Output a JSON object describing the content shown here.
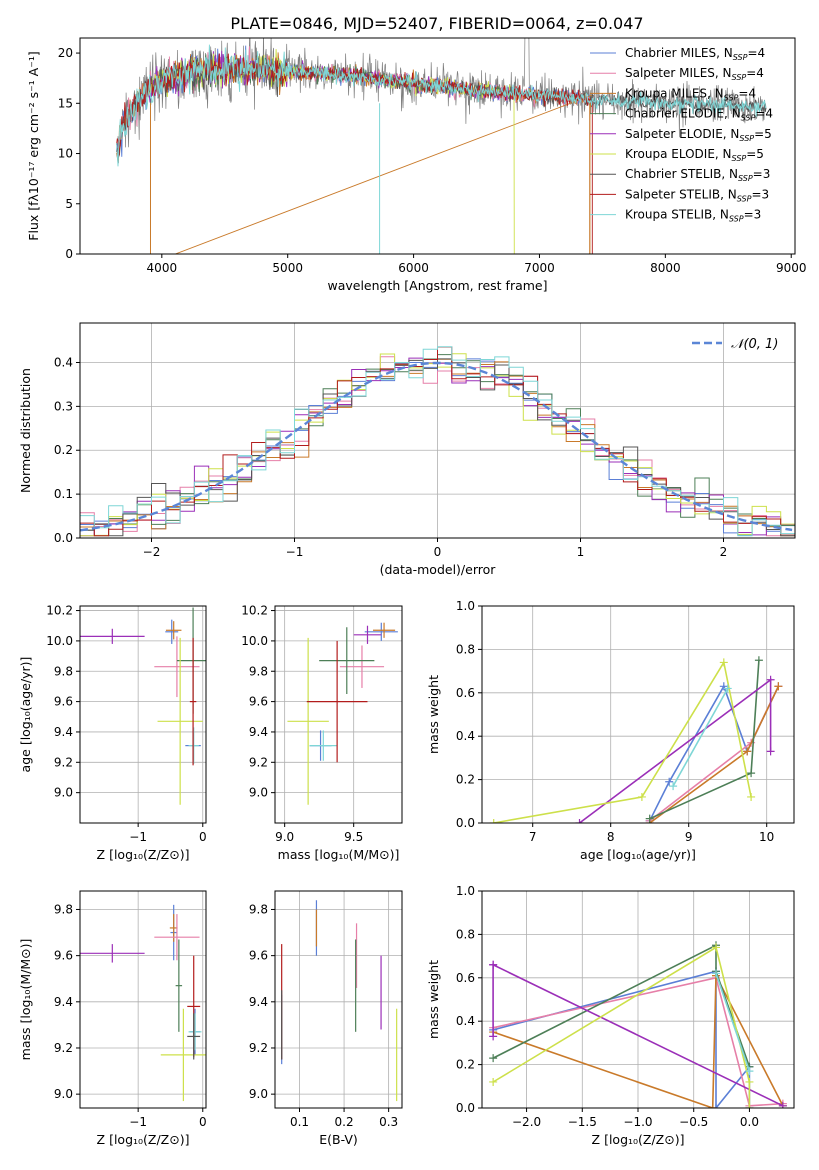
{
  "page_title": "PLATE=0846, MJD=52407, FIBERID=0064, z=0.047",
  "colors": [
    "#5b7fd6",
    "#e67fa8",
    "#c97a2a",
    "#4d7f57",
    "#9b2fb8",
    "#cde04a",
    "#555555",
    "#b21c1c",
    "#7ed6d6"
  ],
  "chart_data": [
    {
      "type": "line",
      "id": "spectrum",
      "xlabel": "wavelength [Angstrom, rest frame]",
      "ylabel": "Flux [fλ10⁻¹⁷ erg cm⁻² s⁻¹ A⁻¹]",
      "xlim": [
        3350,
        9030
      ],
      "ylim": [
        0,
        21.5
      ],
      "xticks": [
        4000,
        5000,
        6000,
        7000,
        8000,
        9000
      ],
      "yticks": [
        0,
        5,
        10,
        15,
        20
      ],
      "legend_position": "top-right",
      "series": [
        {
          "name": "Chabrier MILES, N_SSP=4",
          "label_main": "Chabrier MILES, N",
          "label_sub": "SSP",
          "label_tail": "=4",
          "x_range": [
            3640,
            7400
          ]
        },
        {
          "name": "Salpeter MILES, N_SSP=4",
          "label_main": "Salpeter MILES, N",
          "label_sub": "SSP",
          "label_tail": "=4",
          "x_range": [
            3640,
            7400
          ]
        },
        {
          "name": "Kroupa MILES, N_SSP=4",
          "label_main": "Kroupa MILES, N",
          "label_sub": "SSP",
          "label_tail": "=4",
          "x_range": [
            3640,
            7420
          ]
        },
        {
          "name": "Chabrier ELODIE, N_SSP=4",
          "label_main": "Chabrier ELODIE, N",
          "label_sub": "SSP",
          "label_tail": "=4",
          "x_range": [
            3900,
            6800
          ]
        },
        {
          "name": "Salpeter ELODIE, N_SSP=5",
          "label_main": "Salpeter ELODIE, N",
          "label_sub": "SSP",
          "label_tail": "=5",
          "x_range": [
            3900,
            6800
          ]
        },
        {
          "name": "Kroupa ELODIE, N_SSP=5",
          "label_main": "Kroupa ELODIE, N",
          "label_sub": "SSP",
          "label_tail": "=5",
          "x_range": [
            3900,
            6800
          ]
        },
        {
          "name": "Chabrier STELIB, N_SSP=3",
          "label_main": "Chabrier STELIB, N",
          "label_sub": "SSP",
          "label_tail": "=3",
          "x_range": [
            3640,
            8800
          ]
        },
        {
          "name": "Salpeter STELIB, N_SSP=3",
          "label_main": "Salpeter STELIB, N",
          "label_sub": "SSP",
          "label_tail": "=3",
          "x_range": [
            3640,
            7420
          ]
        },
        {
          "name": "Kroupa STELIB, N_SSP=3",
          "label_main": "Kroupa STELIB, N",
          "label_sub": "SSP",
          "label_tail": "=3",
          "x_range": [
            3640,
            8800
          ]
        }
      ],
      "observed_profile": [
        [
          3640,
          10
        ],
        [
          3700,
          13
        ],
        [
          3800,
          15
        ],
        [
          3900,
          16.5
        ],
        [
          4000,
          17.2
        ],
        [
          4200,
          18
        ],
        [
          4500,
          18.5
        ],
        [
          5000,
          18.2
        ],
        [
          5500,
          17.8
        ],
        [
          6000,
          17
        ],
        [
          6500,
          16.3
        ],
        [
          7000,
          15.8
        ],
        [
          7500,
          15.3
        ],
        [
          8000,
          15
        ],
        [
          8500,
          14.8
        ],
        [
          8800,
          14.6
        ]
      ]
    },
    {
      "type": "histogram",
      "id": "residuals",
      "xlabel": "(data-model)/error",
      "ylabel": "Normed distribution",
      "xlim": [
        -2.5,
        2.5
      ],
      "ylim": [
        0,
        0.49
      ],
      "xticks": [
        -2,
        -1,
        0,
        1,
        2
      ],
      "yticks": [
        0.0,
        0.1,
        0.2,
        0.3,
        0.4
      ],
      "bin_width": 0.1,
      "grid": true,
      "legend_position": "top-right",
      "reference": {
        "label": "𝒩(0, 1)",
        "mean": 0,
        "sigma": 1,
        "color": "#5b86d6"
      }
    },
    {
      "type": "errorbar",
      "id": "age-vs-Z",
      "xlabel": "Z [log₁₀(Z/Z⊙)]",
      "ylabel": "age  [log₁₀(age/yr)]",
      "xlim": [
        -1.9,
        0.05
      ],
      "ylim": [
        8.8,
        10.23
      ],
      "xticks": [
        -1,
        0
      ],
      "yticks": [
        9.0,
        9.2,
        9.4,
        9.6,
        9.8,
        10.0,
        10.2
      ],
      "grid": true,
      "points": [
        {
          "x": -0.48,
          "y": 10.06,
          "xerr": 0.1,
          "yerr": 0.08,
          "color": 0
        },
        {
          "x": -0.45,
          "y": 10.07,
          "xerr": 0.12,
          "yerr": 0.06,
          "color": 2
        },
        {
          "x": -0.4,
          "y": 9.83,
          "xerr": 0.35,
          "yerr": 0.2,
          "color": 1
        },
        {
          "x": -0.15,
          "y": 9.87,
          "xerr": 0.25,
          "yerr": 0.35,
          "color": 3
        },
        {
          "x": -0.15,
          "y": 9.31,
          "xerr": 0.12,
          "yerr": 0.1,
          "color": 0
        },
        {
          "x": -0.14,
          "y": 9.31,
          "xerr": 0.08,
          "yerr": 0.12,
          "color": 8
        },
        {
          "x": -1.4,
          "y": 10.03,
          "xerr": 0.5,
          "yerr": 0.05,
          "color": 4
        },
        {
          "x": -0.35,
          "y": 9.47,
          "xerr": 0.35,
          "yerr": 0.55,
          "color": 5
        },
        {
          "x": -0.15,
          "y": 9.6,
          "xerr": 0.05,
          "yerr": 0.42,
          "color": 7
        }
      ]
    },
    {
      "type": "errorbar",
      "id": "age-vs-mass",
      "xlabel": "mass [log₁₀(M/M⊙)]",
      "ylabel": "",
      "xlim": [
        8.93,
        9.85
      ],
      "ylim": [
        8.8,
        10.23
      ],
      "xticks": [
        9.0,
        9.5
      ],
      "yticks": [
        9.0,
        9.2,
        9.4,
        9.6,
        9.8,
        10.0,
        10.2
      ],
      "grid": true,
      "points": [
        {
          "x": 9.7,
          "y": 10.06,
          "xerr": 0.12,
          "yerr": 0.06,
          "color": 0
        },
        {
          "x": 9.72,
          "y": 10.07,
          "xerr": 0.08,
          "yerr": 0.05,
          "color": 2
        },
        {
          "x": 9.56,
          "y": 9.83,
          "xerr": 0.16,
          "yerr": 0.14,
          "color": 1
        },
        {
          "x": 9.45,
          "y": 9.87,
          "xerr": 0.2,
          "yerr": 0.22,
          "color": 3
        },
        {
          "x": 9.26,
          "y": 9.31,
          "xerr": 0.08,
          "yerr": 0.1,
          "color": 0
        },
        {
          "x": 9.28,
          "y": 9.31,
          "xerr": 0.1,
          "yerr": 0.1,
          "color": 8
        },
        {
          "x": 9.6,
          "y": 10.04,
          "xerr": 0.1,
          "yerr": 0.06,
          "color": 4
        },
        {
          "x": 9.17,
          "y": 9.47,
          "xerr": 0.15,
          "yerr": 0.55,
          "color": 5
        },
        {
          "x": 9.38,
          "y": 9.6,
          "xerr": 0.22,
          "yerr": 0.4,
          "color": 7
        }
      ]
    },
    {
      "type": "line",
      "id": "mass-weight-vs-age",
      "xlabel": "age  [log₁₀(age/yr)]",
      "ylabel": "mass weight",
      "xlim": [
        6.35,
        10.35
      ],
      "ylim": [
        0,
        1.0
      ],
      "xticks": [
        7,
        8,
        9,
        10
      ],
      "yticks": [
        0.0,
        0.2,
        0.4,
        0.6,
        0.8,
        1.0
      ],
      "grid": true,
      "series": [
        {
          "color": 0,
          "x": [
            8.5,
            8.75,
            9.45,
            9.75,
            10.15
          ],
          "y": [
            0.01,
            0.19,
            0.63,
            0.33,
            0.63
          ]
        },
        {
          "color": 1,
          "x": [
            8.5,
            9.8,
            10.15
          ],
          "y": [
            0.01,
            0.37,
            0.63
          ]
        },
        {
          "color": 2,
          "x": [
            8.5,
            9.75,
            10.15
          ],
          "y": [
            0.0,
            0.33,
            0.63
          ]
        },
        {
          "color": 3,
          "x": [
            8.5,
            9.8,
            9.9
          ],
          "y": [
            0.02,
            0.23,
            0.75
          ]
        },
        {
          "color": 4,
          "x": [
            7.6,
            10.05,
            10.05
          ],
          "y": [
            0.0,
            0.66,
            0.33
          ]
        },
        {
          "color": 5,
          "x": [
            6.5,
            8.4,
            9.45,
            9.8
          ],
          "y": [
            0.0,
            0.12,
            0.74,
            0.12
          ]
        },
        {
          "color": 8,
          "x": [
            8.8,
            9.5
          ],
          "y": [
            0.17,
            0.62
          ]
        }
      ]
    },
    {
      "type": "errorbar",
      "id": "mass-vs-Z",
      "xlabel": "Z [log₁₀(Z/Z⊙)]",
      "ylabel": "mass [log₁₀(M/M⊙)]",
      "xlim": [
        -1.9,
        0.05
      ],
      "ylim": [
        8.94,
        9.88
      ],
      "xticks": [
        -1,
        0
      ],
      "yticks": [
        9.0,
        9.2,
        9.4,
        9.6,
        9.8
      ],
      "grid": true,
      "points": [
        {
          "x": -0.45,
          "y": 9.7,
          "xerr": 0.05,
          "yerr": 0.12,
          "color": 0
        },
        {
          "x": -0.45,
          "y": 9.72,
          "xerr": 0.06,
          "yerr": 0.06,
          "color": 2
        },
        {
          "x": -0.4,
          "y": 9.68,
          "xerr": 0.35,
          "yerr": 0.1,
          "color": 1
        },
        {
          "x": -0.37,
          "y": 9.47,
          "xerr": 0.05,
          "yerr": 0.2,
          "color": 3
        },
        {
          "x": -0.12,
          "y": 9.27,
          "xerr": 0.08,
          "yerr": 0.1,
          "color": 0
        },
        {
          "x": -0.12,
          "y": 9.27,
          "xerr": 0.1,
          "yerr": 0.08,
          "color": 8
        },
        {
          "x": -1.4,
          "y": 9.61,
          "xerr": 0.5,
          "yerr": 0.04,
          "color": 4
        },
        {
          "x": -0.3,
          "y": 9.17,
          "xerr": 0.35,
          "yerr": 0.2,
          "color": 5
        },
        {
          "x": -0.14,
          "y": 9.38,
          "xerr": 0.1,
          "yerr": 0.22,
          "color": 7
        },
        {
          "x": -0.14,
          "y": 9.25,
          "xerr": 0.1,
          "yerr": 0.1,
          "color": 6
        }
      ]
    },
    {
      "type": "errorbar",
      "id": "mass-vs-EBV",
      "xlabel": "E(B-V)",
      "ylabel": "",
      "xlim": [
        0.045,
        0.33
      ],
      "ylim": [
        8.94,
        9.88
      ],
      "xticks": [
        0.1,
        0.2,
        0.3
      ],
      "yticks": [
        9.0,
        9.2,
        9.4,
        9.6,
        9.8
      ],
      "grid": true,
      "points": [
        {
          "x": 0.138,
          "y": 9.72,
          "xerr": 0,
          "yerr": 0.12,
          "color": 0
        },
        {
          "x": 0.138,
          "y": 9.72,
          "xerr": 0,
          "yerr": 0.08,
          "color": 2
        },
        {
          "x": 0.228,
          "y": 9.6,
          "xerr": 0,
          "yerr": 0.14,
          "color": 1
        },
        {
          "x": 0.226,
          "y": 9.47,
          "xerr": 0,
          "yerr": 0.2,
          "color": 3
        },
        {
          "x": 0.06,
          "y": 9.28,
          "xerr": 0,
          "yerr": 0.15,
          "color": 0
        },
        {
          "x": 0.06,
          "y": 9.28,
          "xerr": 0,
          "yerr": 0.12,
          "color": 8
        },
        {
          "x": 0.283,
          "y": 9.44,
          "xerr": 0,
          "yerr": 0.16,
          "color": 4
        },
        {
          "x": 0.318,
          "y": 9.17,
          "xerr": 0,
          "yerr": 0.2,
          "color": 5
        },
        {
          "x": 0.06,
          "y": 9.4,
          "xerr": 0,
          "yerr": 0.25,
          "color": 7
        },
        {
          "x": 0.06,
          "y": 9.3,
          "xerr": 0,
          "yerr": 0.15,
          "color": 6
        }
      ]
    },
    {
      "type": "line",
      "id": "mass-weight-vs-Z",
      "xlabel": "Z [log₁₀(Z/Z⊙)]",
      "ylabel": "mass weight",
      "xlim": [
        -2.4,
        0.4
      ],
      "ylim": [
        0,
        1.0
      ],
      "xticks": [
        -2.0,
        -1.5,
        -1.0,
        -0.5,
        0.0
      ],
      "yticks": [
        0.0,
        0.2,
        0.4,
        0.6,
        0.8,
        1.0
      ],
      "grid": true,
      "series": [
        {
          "color": 0,
          "x": [
            -2.3,
            -0.3,
            -0.3,
            0.0,
            0.0
          ],
          "y": [
            0.36,
            0.63,
            0.0,
            0.19,
            0.0
          ]
        },
        {
          "color": 1,
          "x": [
            -2.3,
            -0.3,
            0.0,
            0.3
          ],
          "y": [
            0.37,
            0.6,
            0.01,
            0.02
          ]
        },
        {
          "color": 2,
          "x": [
            -2.3,
            -0.33,
            -0.33,
            -0.3,
            0.3,
            -0.3
          ],
          "y": [
            0.35,
            0.0,
            0.0,
            0.61,
            0.01,
            0.61
          ]
        },
        {
          "color": 3,
          "x": [
            -2.3,
            -0.3,
            -0.3,
            0.0
          ],
          "y": [
            0.23,
            0.75,
            0.63,
            0.19
          ]
        },
        {
          "color": 4,
          "x": [
            -2.3,
            -2.3,
            -2.3,
            0.3
          ],
          "y": [
            0.33,
            0.66,
            0.66,
            0.01
          ]
        },
        {
          "color": 5,
          "x": [
            -2.3,
            -0.3,
            0.0,
            0.0
          ],
          "y": [
            0.12,
            0.74,
            0.12,
            0.0
          ]
        },
        {
          "color": 8,
          "x": [
            -0.3,
            0.0
          ],
          "y": [
            0.62,
            0.17
          ]
        }
      ]
    }
  ]
}
